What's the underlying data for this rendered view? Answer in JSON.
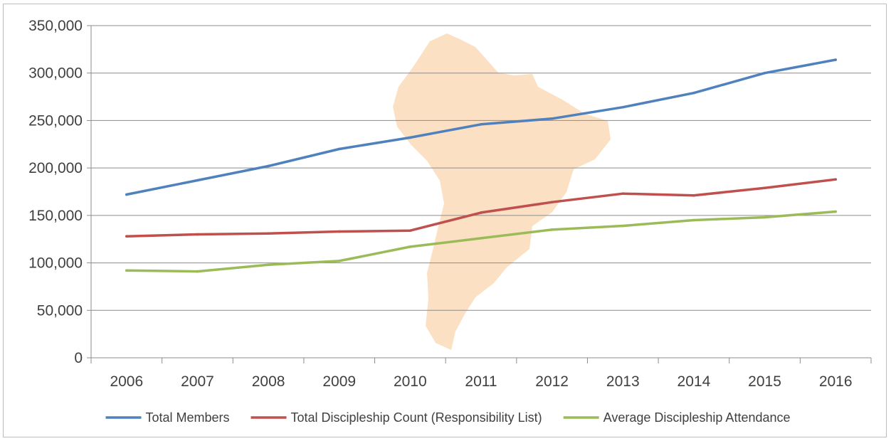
{
  "chart_data": {
    "type": "line",
    "categories": [
      "2006",
      "2007",
      "2008",
      "2009",
      "2010",
      "2011",
      "2012",
      "2013",
      "2014",
      "2015",
      "2016"
    ],
    "y_ticks": [
      "0",
      "50,000",
      "100,000",
      "150,000",
      "200,000",
      "250,000",
      "300,000",
      "350,000"
    ],
    "ylim": [
      0,
      350000
    ],
    "grid": true,
    "legend_position": "bottom",
    "background_image": "south-america-map",
    "series": [
      {
        "name": "Total Members",
        "color": "#4f81bd",
        "values": [
          172000,
          187000,
          202000,
          220000,
          232000,
          246000,
          252000,
          264000,
          279000,
          300000,
          314000
        ]
      },
      {
        "name": "Total Discipleship Count (Responsibility List)",
        "color": "#c0504d",
        "values": [
          128000,
          130000,
          131000,
          133000,
          134000,
          153000,
          164000,
          173000,
          171000,
          179000,
          188000
        ]
      },
      {
        "name": "Average Discipleship Attendance",
        "color": "#9bbb59",
        "values": [
          92000,
          91000,
          98000,
          102000,
          117000,
          126000,
          135000,
          139000,
          145000,
          148000,
          154000
        ]
      }
    ]
  }
}
